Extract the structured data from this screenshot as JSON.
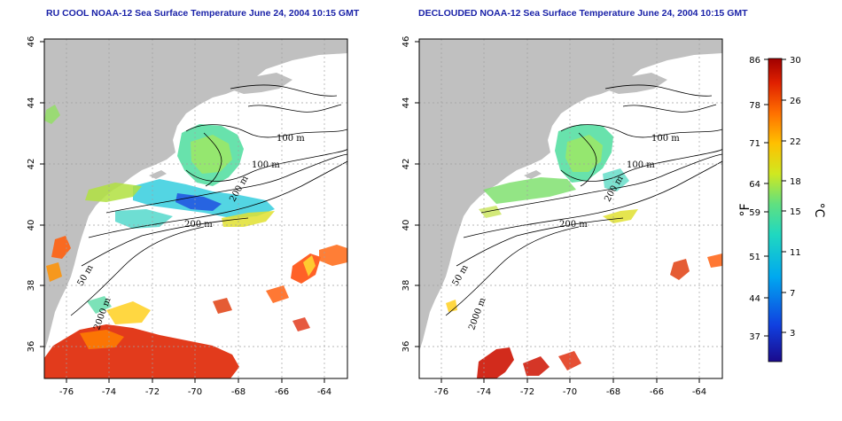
{
  "panels": [
    {
      "title": "RU COOL NOAA-12 Sea Surface Temperature June 24, 2004 10:15 GMT",
      "contour_labels": [
        "100 m",
        "100 m",
        "200 m",
        "200 m",
        "50 m",
        "2000 m"
      ]
    },
    {
      "title": "DECLOUDED NOAA-12 Sea Surface Temperature June 24, 2004 10:15 GMT",
      "contour_labels": [
        "100 m",
        "100 m",
        "200 m",
        "200 m",
        "50 m",
        "2000 m"
      ]
    }
  ],
  "axes": {
    "x_ticks": [
      "-76",
      "-74",
      "-72",
      "-70",
      "-68",
      "-66",
      "-64"
    ],
    "y_ticks": [
      "36",
      "38",
      "40",
      "42",
      "44",
      "46"
    ],
    "lon_range": [
      -77.0,
      -63.0
    ],
    "lat_range": [
      35.0,
      46.0
    ]
  },
  "colorbar": {
    "fahrenheit_ticks": [
      "86",
      "78",
      "71",
      "64",
      "59",
      "51",
      "44",
      "37"
    ],
    "celsius_ticks": [
      "30",
      "26",
      "22",
      "18",
      "15",
      "11",
      "7",
      "3"
    ],
    "fahrenheit_unit": "°F",
    "celsius_unit": "°C",
    "range_c": [
      0,
      30
    ]
  },
  "colors": {
    "land": "#c0c0c0",
    "title": "#1a22a8",
    "grid": "#a0a0a0"
  }
}
